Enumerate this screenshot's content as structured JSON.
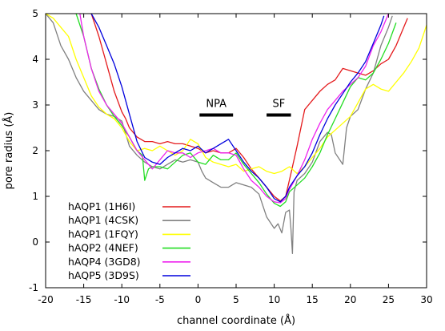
{
  "chart_data": {
    "type": "line",
    "xlabel": "channel coordinate (Å)",
    "ylabel": "pore radius (Å)",
    "xlim": [
      -20,
      30
    ],
    "ylim": [
      -1,
      5
    ],
    "xticks": [
      -20,
      -15,
      -10,
      -5,
      0,
      5,
      10,
      15,
      20,
      25,
      30
    ],
    "yticks": [
      -1,
      0,
      1,
      2,
      3,
      4,
      5
    ],
    "grid": false,
    "legend": "bottom-left",
    "annotations": [
      {
        "label": "NPA",
        "x_range": [
          0.2,
          4.6
        ],
        "y": 2.78
      },
      {
        "label": "SF",
        "x_range": [
          9.0,
          12.2
        ],
        "y": 2.78
      }
    ],
    "series": [
      {
        "name": "hAQP1 (1H6I)",
        "color": "#e41a1c",
        "points": [
          [
            -14,
            5.0
          ],
          [
            -13,
            4.5
          ],
          [
            -12,
            3.9
          ],
          [
            -11,
            3.3
          ],
          [
            -10,
            2.85
          ],
          [
            -9.5,
            2.7
          ],
          [
            -9,
            2.5
          ],
          [
            -8,
            2.3
          ],
          [
            -7,
            2.2
          ],
          [
            -6,
            2.2
          ],
          [
            -5,
            2.15
          ],
          [
            -4,
            2.2
          ],
          [
            -3,
            2.15
          ],
          [
            -2,
            2.15
          ],
          [
            -1,
            2.1
          ],
          [
            0,
            2.05
          ],
          [
            1,
            1.95
          ],
          [
            2,
            2.0
          ],
          [
            3,
            1.95
          ],
          [
            4,
            1.95
          ],
          [
            5,
            2.05
          ],
          [
            6,
            1.85
          ],
          [
            7,
            1.6
          ],
          [
            8,
            1.4
          ],
          [
            9,
            1.2
          ],
          [
            10,
            1.0
          ],
          [
            10.8,
            0.9
          ],
          [
            11.5,
            1.0
          ],
          [
            12.2,
            1.5
          ],
          [
            13,
            2.1
          ],
          [
            14,
            2.9
          ],
          [
            15,
            3.1
          ],
          [
            16,
            3.3
          ],
          [
            17,
            3.45
          ],
          [
            18,
            3.55
          ],
          [
            19,
            3.8
          ],
          [
            20,
            3.75
          ],
          [
            21,
            3.7
          ],
          [
            22,
            3.65
          ],
          [
            23,
            3.75
          ],
          [
            24,
            3.9
          ],
          [
            25,
            4.0
          ],
          [
            26,
            4.3
          ],
          [
            27,
            4.7
          ],
          [
            27.5,
            4.9
          ]
        ]
      },
      {
        "name": "hAQP1 (4CSK)",
        "color": "#808080",
        "points": [
          [
            -20,
            5.0
          ],
          [
            -19,
            4.8
          ],
          [
            -18,
            4.3
          ],
          [
            -17,
            4.0
          ],
          [
            -16,
            3.6
          ],
          [
            -15,
            3.3
          ],
          [
            -14,
            3.1
          ],
          [
            -13,
            2.9
          ],
          [
            -12,
            2.8
          ],
          [
            -11,
            2.75
          ],
          [
            -10,
            2.65
          ],
          [
            -9,
            2.1
          ],
          [
            -8,
            1.9
          ],
          [
            -7,
            1.75
          ],
          [
            -6,
            1.65
          ],
          [
            -5,
            1.6
          ],
          [
            -4,
            1.7
          ],
          [
            -3,
            1.8
          ],
          [
            -2,
            1.75
          ],
          [
            -1,
            1.8
          ],
          [
            0,
            1.75
          ],
          [
            0.5,
            1.55
          ],
          [
            1,
            1.4
          ],
          [
            2,
            1.3
          ],
          [
            3,
            1.2
          ],
          [
            4,
            1.2
          ],
          [
            5,
            1.3
          ],
          [
            6,
            1.25
          ],
          [
            7,
            1.2
          ],
          [
            8,
            1.05
          ],
          [
            9,
            0.55
          ],
          [
            10,
            0.3
          ],
          [
            10.5,
            0.4
          ],
          [
            11,
            0.2
          ],
          [
            11.5,
            0.65
          ],
          [
            12,
            0.7
          ],
          [
            12.2,
            0.3
          ],
          [
            12.4,
            -0.25
          ],
          [
            12.6,
            1.1
          ],
          [
            13,
            1.35
          ],
          [
            14,
            1.5
          ],
          [
            15,
            1.75
          ],
          [
            16,
            2.2
          ],
          [
            17,
            2.4
          ],
          [
            17.5,
            2.35
          ],
          [
            18,
            1.95
          ],
          [
            19,
            1.7
          ],
          [
            19.5,
            2.5
          ],
          [
            20,
            2.75
          ],
          [
            21,
            2.9
          ],
          [
            22,
            3.35
          ],
          [
            23,
            3.7
          ],
          [
            24,
            4.3
          ],
          [
            25,
            4.7
          ],
          [
            25.5,
            4.95
          ]
        ]
      },
      {
        "name": "hAQP1 (1FQY)",
        "color": "#ffff00",
        "points": [
          [
            -20,
            5.0
          ],
          [
            -19,
            4.9
          ],
          [
            -18,
            4.7
          ],
          [
            -17,
            4.5
          ],
          [
            -16,
            4.0
          ],
          [
            -15,
            3.6
          ],
          [
            -14,
            3.2
          ],
          [
            -13,
            2.95
          ],
          [
            -12,
            2.8
          ],
          [
            -11,
            2.7
          ],
          [
            -10,
            2.5
          ],
          [
            -9,
            2.2
          ],
          [
            -8,
            2.0
          ],
          [
            -7,
            2.05
          ],
          [
            -6,
            2.0
          ],
          [
            -5,
            2.1
          ],
          [
            -4,
            2.0
          ],
          [
            -3,
            1.9
          ],
          [
            -2,
            2.0
          ],
          [
            -1,
            2.25
          ],
          [
            0,
            2.15
          ],
          [
            1,
            1.85
          ],
          [
            2,
            1.75
          ],
          [
            3,
            1.7
          ],
          [
            4,
            1.65
          ],
          [
            5,
            1.7
          ],
          [
            6,
            1.55
          ],
          [
            7,
            1.6
          ],
          [
            8,
            1.65
          ],
          [
            9,
            1.55
          ],
          [
            10,
            1.5
          ],
          [
            11,
            1.55
          ],
          [
            12,
            1.65
          ],
          [
            13,
            1.5
          ],
          [
            14,
            1.65
          ],
          [
            15,
            1.85
          ],
          [
            16,
            2.05
          ],
          [
            17,
            2.3
          ],
          [
            18,
            2.45
          ],
          [
            19,
            2.6
          ],
          [
            20,
            2.75
          ],
          [
            21,
            3.05
          ],
          [
            22,
            3.35
          ],
          [
            23,
            3.45
          ],
          [
            24,
            3.35
          ],
          [
            25,
            3.3
          ],
          [
            26,
            3.5
          ],
          [
            27,
            3.7
          ],
          [
            28,
            3.95
          ],
          [
            29,
            4.25
          ],
          [
            30,
            4.75
          ]
        ]
      },
      {
        "name": "hAQP2 (4NEF)",
        "color": "#22dd22",
        "points": [
          [
            -16,
            5.0
          ],
          [
            -15,
            4.5
          ],
          [
            -14,
            3.8
          ],
          [
            -13,
            3.35
          ],
          [
            -12,
            3.0
          ],
          [
            -11,
            2.75
          ],
          [
            -10,
            2.55
          ],
          [
            -9,
            2.3
          ],
          [
            -8,
            2.0
          ],
          [
            -7.3,
            1.9
          ],
          [
            -7,
            1.35
          ],
          [
            -6.5,
            1.6
          ],
          [
            -6,
            1.65
          ],
          [
            -5,
            1.65
          ],
          [
            -4,
            1.6
          ],
          [
            -3,
            1.75
          ],
          [
            -2,
            1.9
          ],
          [
            -1,
            1.95
          ],
          [
            0,
            1.75
          ],
          [
            1,
            1.7
          ],
          [
            2,
            1.9
          ],
          [
            3,
            1.8
          ],
          [
            4,
            1.8
          ],
          [
            5,
            1.95
          ],
          [
            6,
            1.7
          ],
          [
            7,
            1.5
          ],
          [
            8,
            1.3
          ],
          [
            9,
            1.05
          ],
          [
            10,
            0.85
          ],
          [
            10.8,
            0.78
          ],
          [
            11.5,
            0.88
          ],
          [
            12,
            1.1
          ],
          [
            13,
            1.25
          ],
          [
            14,
            1.4
          ],
          [
            15,
            1.65
          ],
          [
            16,
            1.95
          ],
          [
            17,
            2.35
          ],
          [
            18,
            2.7
          ],
          [
            19,
            3.05
          ],
          [
            20,
            3.4
          ],
          [
            21,
            3.6
          ],
          [
            22,
            3.55
          ],
          [
            23,
            3.7
          ],
          [
            24,
            4.0
          ],
          [
            25,
            4.35
          ],
          [
            26,
            4.8
          ]
        ]
      },
      {
        "name": "hAQP4 (3GD8)",
        "color": "#ee22ee",
        "points": [
          [
            -15.5,
            5.0
          ],
          [
            -15,
            4.5
          ],
          [
            -14,
            3.8
          ],
          [
            -13,
            3.3
          ],
          [
            -12,
            3.0
          ],
          [
            -11,
            2.8
          ],
          [
            -10,
            2.6
          ],
          [
            -9,
            2.3
          ],
          [
            -8,
            2.0
          ],
          [
            -7,
            1.8
          ],
          [
            -6,
            1.6
          ],
          [
            -5,
            1.8
          ],
          [
            -4,
            2.0
          ],
          [
            -3,
            1.95
          ],
          [
            -2,
            1.95
          ],
          [
            -1,
            1.85
          ],
          [
            0,
            1.95
          ],
          [
            1,
            2.0
          ],
          [
            2,
            2.05
          ],
          [
            3,
            1.95
          ],
          [
            4,
            1.95
          ],
          [
            5,
            1.9
          ],
          [
            6,
            1.6
          ],
          [
            7,
            1.35
          ],
          [
            8,
            1.2
          ],
          [
            9,
            1.0
          ],
          [
            10,
            0.88
          ],
          [
            10.8,
            0.86
          ],
          [
            11.5,
            0.95
          ],
          [
            12,
            1.15
          ],
          [
            13,
            1.45
          ],
          [
            14,
            1.8
          ],
          [
            15,
            2.25
          ],
          [
            16,
            2.6
          ],
          [
            17,
            2.9
          ],
          [
            18,
            3.1
          ],
          [
            19,
            3.3
          ],
          [
            20,
            3.45
          ],
          [
            21,
            3.6
          ],
          [
            22,
            3.85
          ],
          [
            23,
            4.3
          ],
          [
            24,
            4.6
          ],
          [
            25,
            5.0
          ]
        ]
      },
      {
        "name": "hAQP5 (3D9S)",
        "color": "#0000dd",
        "points": [
          [
            -14,
            5.0
          ],
          [
            -13,
            4.7
          ],
          [
            -12,
            4.3
          ],
          [
            -11,
            3.9
          ],
          [
            -10,
            3.4
          ],
          [
            -9,
            2.8
          ],
          [
            -8,
            2.2
          ],
          [
            -7,
            1.85
          ],
          [
            -6,
            1.75
          ],
          [
            -5,
            1.7
          ],
          [
            -4,
            1.85
          ],
          [
            -3,
            1.95
          ],
          [
            -2,
            2.05
          ],
          [
            -1,
            2.0
          ],
          [
            0,
            2.1
          ],
          [
            1,
            1.95
          ],
          [
            2,
            2.05
          ],
          [
            3,
            2.15
          ],
          [
            4,
            2.25
          ],
          [
            5,
            2.0
          ],
          [
            6,
            1.75
          ],
          [
            7,
            1.55
          ],
          [
            8,
            1.4
          ],
          [
            9,
            1.2
          ],
          [
            10,
            0.95
          ],
          [
            10.8,
            0.88
          ],
          [
            11.5,
            1.0
          ],
          [
            12,
            1.2
          ],
          [
            13,
            1.45
          ],
          [
            14,
            1.65
          ],
          [
            15,
            1.95
          ],
          [
            16,
            2.35
          ],
          [
            17,
            2.7
          ],
          [
            18,
            3.0
          ],
          [
            19,
            3.25
          ],
          [
            20,
            3.5
          ],
          [
            21,
            3.7
          ],
          [
            22,
            3.95
          ],
          [
            23,
            4.35
          ],
          [
            24,
            4.75
          ],
          [
            24.4,
            4.95
          ]
        ]
      }
    ]
  }
}
